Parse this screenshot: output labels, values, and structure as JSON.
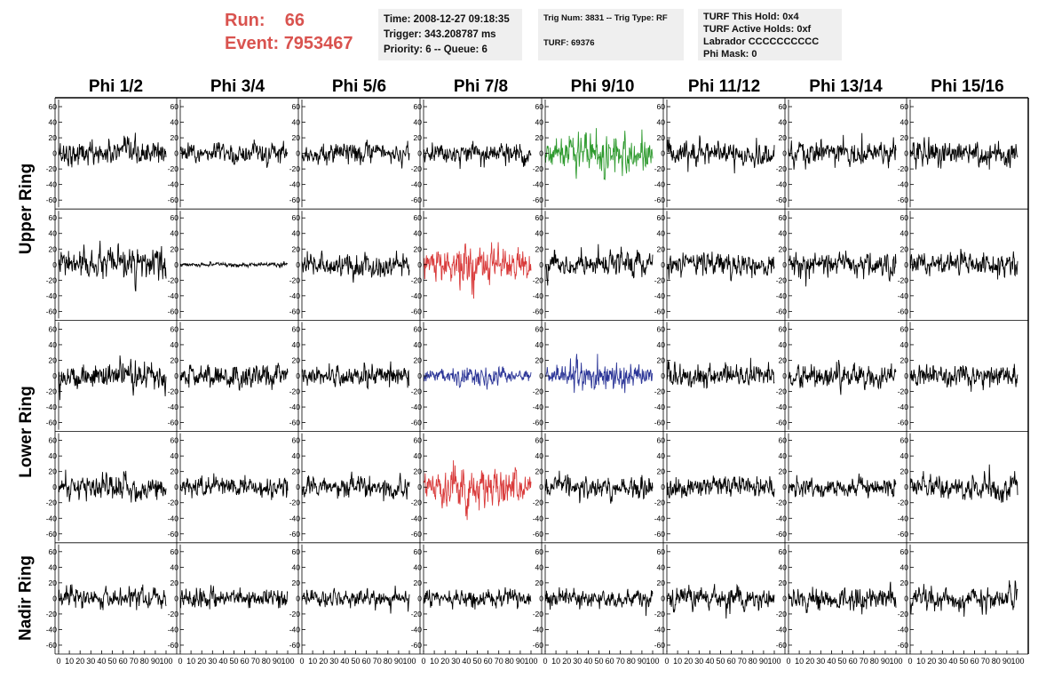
{
  "header": {
    "run_label": "Run:",
    "run_value": "66",
    "event_label": "Event:",
    "event_value": "7953467",
    "time": "Time: 2008-12-27 09:18:35",
    "trigger": "Trigger: 343.208787 ms",
    "priority": "Priority: 6 -- Queue: 6",
    "trig_num": "Trig Num: 3831 -- Trig Type: RF",
    "turf": "TURF: 69376",
    "turf_this_hold": "TURF This Hold: 0x4",
    "turf_active_holds": "TURF Active Holds: 0xf",
    "labrador": "Labrador CCCCCCCCCC",
    "phi_mask": "Phi Mask: 0"
  },
  "colors": {
    "trace_default": "#000000",
    "trace_green": "#2e9a2e",
    "trace_red": "#d93a3a",
    "trace_blue": "#2b3597",
    "run_text": "#d9534f",
    "info_bg": "#efefef"
  },
  "chart_data": {
    "type": "line",
    "columns": [
      "Phi 1/2",
      "Phi 3/4",
      "Phi 5/6",
      "Phi 7/8",
      "Phi 9/10",
      "Phi 11/12",
      "Phi 13/14",
      "Phi 15/16"
    ],
    "ring_labels": [
      "Upper Ring",
      "Lower Ring",
      "Nadir Ring"
    ],
    "ring_label_spans": [
      [
        0,
        1
      ],
      [
        2,
        3
      ],
      [
        4,
        4
      ]
    ],
    "ylim": [
      -68,
      68
    ],
    "yticks": [
      -60,
      -40,
      -20,
      0,
      20,
      40,
      60
    ],
    "xlim": [
      0,
      100
    ],
    "xticks": [
      "0",
      "10",
      "20",
      "30",
      "40",
      "50",
      "60",
      "70",
      "80",
      "90",
      "100"
    ],
    "samples": 260,
    "rows": [
      [
        "default",
        "default",
        "default",
        "default",
        "green",
        "default",
        "default",
        "default"
      ],
      [
        "default",
        "default",
        "default",
        "red",
        "default",
        "default",
        "default",
        "default"
      ],
      [
        "default",
        "default",
        "default",
        "blue",
        "blue",
        "default",
        "default",
        "default"
      ],
      [
        "default",
        "default",
        "default",
        "red",
        "default",
        "default",
        "default",
        "default"
      ],
      [
        "default",
        "default",
        "default",
        "default",
        "default",
        "default",
        "default",
        "default"
      ]
    ],
    "amplitude": [
      [
        12,
        10,
        10,
        10,
        22,
        11,
        12,
        12
      ],
      [
        14,
        2,
        12,
        22,
        12,
        11,
        11,
        12
      ],
      [
        13,
        11,
        11,
        10,
        15,
        11,
        11,
        10
      ],
      [
        12,
        10,
        10,
        22,
        10,
        10,
        10,
        12
      ],
      [
        10,
        9,
        8,
        9,
        9,
        11,
        11,
        12
      ]
    ]
  }
}
